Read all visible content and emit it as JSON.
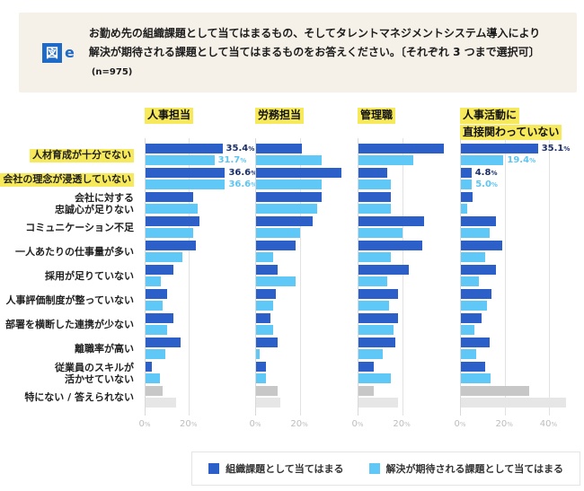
{
  "figure": {
    "badge": {
      "glyph": "図",
      "suffix": "e"
    },
    "title_line1": "お勤め先の組織課題として当てはまるもの、そしてタレントマネジメントシステム導入により",
    "title_line2": "解決が期待される課題として当てはまるものをお答えください。〔それぞれ 3 つまで選択可〕",
    "sample_note": "(n=975)"
  },
  "colors": {
    "series_dark": "#2d5fc8",
    "series_light": "#60c8f6",
    "gray_dark": "#c7c7c7",
    "gray_light": "#e6e6e6",
    "highlight_yellow": "#f7e95c",
    "header_band": "#f5f0e8",
    "badge_blue": "#1f6ac6",
    "value_label_dark": "#1c2f68",
    "value_label_light": "#5ec5f2"
  },
  "legend": {
    "items": [
      {
        "label": "組織課題として当てはまる",
        "color": "#2d5fc8"
      },
      {
        "label": "解決が期待される課題として当てはまる",
        "color": "#60c8f6"
      }
    ]
  },
  "chart_data": {
    "type": "bar",
    "orientation": "horizontal",
    "unit": "%",
    "categories": [
      "人材育成が十分でない",
      "会社の理念が浸透していない",
      "会社に対する\n忠誠心が足りない",
      "コミュニケーション不足",
      "一人あたりの仕事量が多い",
      "採用が足りていない",
      "人事評価制度が整っていない",
      "部署を横断した連携が少ない",
      "離職率が高い",
      "従業員のスキルが\n活かせていない",
      "特にない / 答えられない"
    ],
    "highlighted_categories": [
      "人材育成が十分でない",
      "会社の理念が浸透していない"
    ],
    "gray_category_indexes": [
      10
    ],
    "series_names": [
      "組織課題として当てはまる",
      "解決が期待される課題として当てはまる"
    ],
    "panels": [
      {
        "name": "人事担当",
        "axis_max": 48,
        "ticks": [
          {
            "value": 0,
            "label": "0%"
          },
          {
            "value": 20,
            "label": "20%"
          }
        ],
        "series": [
          {
            "name": "組織課題として当てはまる",
            "values": [
              35.4,
              36.6,
              22,
              25,
              23,
              13,
              10,
              13,
              16,
              3,
              8
            ]
          },
          {
            "name": "解決が期待される課題として当てはまる",
            "values": [
              31.7,
              36.6,
              24,
              22,
              17,
              7,
              8,
              10,
              9,
              6.5,
              14
            ]
          }
        ],
        "value_labels": {
          "0": [
            "35.4%",
            "31.7%"
          ],
          "1": [
            "36.6%",
            "36.6%"
          ]
        }
      },
      {
        "name": "労務担当",
        "axis_max": 44,
        "ticks": [
          {
            "value": 0,
            "label": "0%"
          },
          {
            "value": 20,
            "label": "20%"
          }
        ],
        "series": [
          {
            "name": "組織課題として当てはまる",
            "values": [
              21,
              39,
              30,
              26,
              18,
              10,
              9,
              6.5,
              10,
              4.5,
              10
            ]
          },
          {
            "name": "解決が期待される課題として当てはまる",
            "values": [
              30,
              30,
              28,
              20,
              8,
              18,
              8,
              8,
              1.5,
              4.5,
              11
            ]
          }
        ],
        "value_labels": {}
      },
      {
        "name": "管理職",
        "axis_max": 44,
        "ticks": [
          {
            "value": 0,
            "label": "0%"
          },
          {
            "value": 20,
            "label": "20%"
          }
        ],
        "series": [
          {
            "name": "組織課題として当てはまる",
            "values": [
              39,
              13,
              15,
              30,
              29,
              23,
              18,
              18,
              17,
              7,
              7
            ]
          },
          {
            "name": "解決が期待される課題として当てはまる",
            "values": [
              25,
              15,
              15,
              20,
              15,
              13,
              14,
              16,
              11,
              15,
              18
            ]
          }
        ],
        "value_labels": {}
      },
      {
        "name": "人事活動に\n直接関わっていない",
        "axis_max": 52,
        "ticks": [
          {
            "value": 0,
            "label": "0%"
          },
          {
            "value": 20,
            "label": "20%"
          },
          {
            "value": 40,
            "label": "40%"
          }
        ],
        "series": [
          {
            "name": "組織課題として当てはまる",
            "values": [
              35.1,
              4.8,
              5.5,
              16,
              19,
              16,
              14,
              9.5,
              13,
              11,
              31
            ]
          },
          {
            "name": "解決が期待される課題として当てはまる",
            "values": [
              19.4,
              5.0,
              3,
              13,
              11,
              8,
              12,
              6,
              7,
              13.5,
              48
            ]
          }
        ],
        "value_labels": {
          "0": [
            "35.1%",
            "19.4%"
          ],
          "1": [
            "4.8%",
            "5.0%"
          ]
        }
      }
    ]
  }
}
